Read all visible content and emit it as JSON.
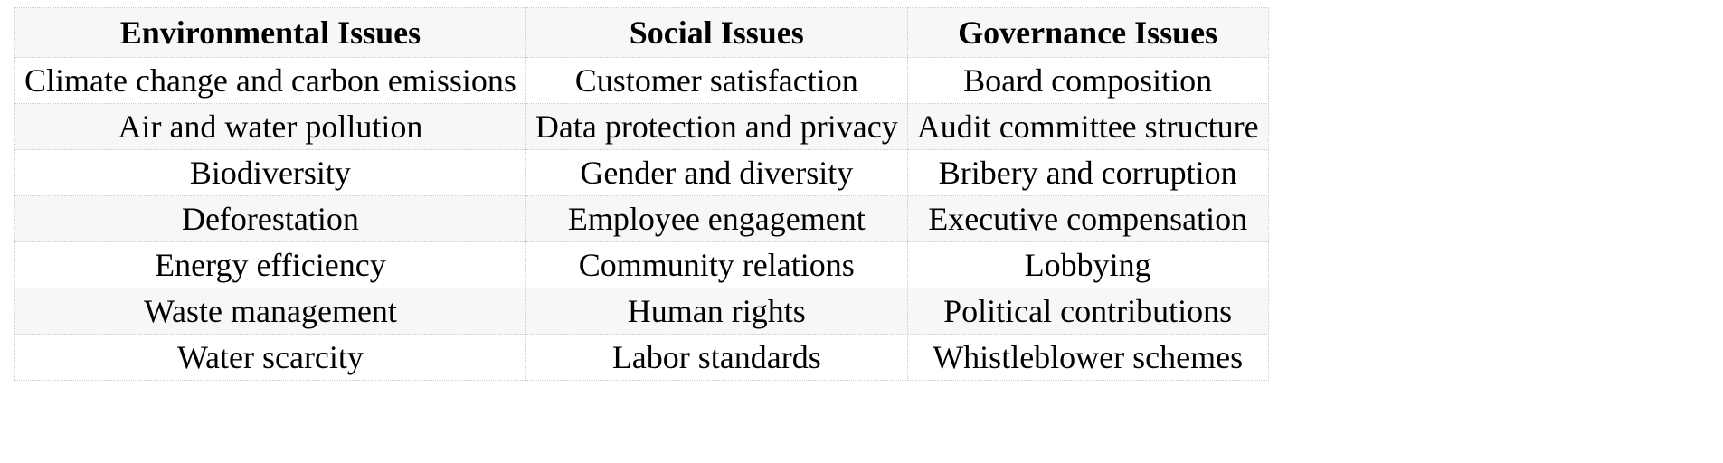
{
  "table": {
    "type": "table",
    "columns": [
      "Environmental Issues",
      "Social Issues",
      "Governance Issues"
    ],
    "rows": [
      [
        "Climate change and carbon emissions",
        "Customer satisfaction",
        "Board composition"
      ],
      [
        "Air and water pollution",
        "Data protection and privacy",
        "Audit committee structure"
      ],
      [
        "Biodiversity",
        "Gender and diversity",
        "Bribery and corruption"
      ],
      [
        "Deforestation",
        "Employee engagement",
        "Executive compensation"
      ],
      [
        "Energy efficiency",
        "Community relations",
        "Lobbying"
      ],
      [
        "Waste management",
        "Human rights",
        "Political contributions"
      ],
      [
        "Water scarcity",
        "Labor standards",
        "Whistleblower schemes"
      ]
    ],
    "header_fontsize": 36,
    "header_fontweight": "bold",
    "cell_fontsize": 36,
    "text_align": "center",
    "header_bg": "#f7f7f7",
    "row_bg_odd": "#ffffff",
    "row_bg_even": "#f7f7f7",
    "border_color": "#cccccc",
    "border_style": "dotted",
    "text_color": "#000000",
    "background_color": "#ffffff",
    "font_family": "Georgia, Times New Roman, serif"
  }
}
